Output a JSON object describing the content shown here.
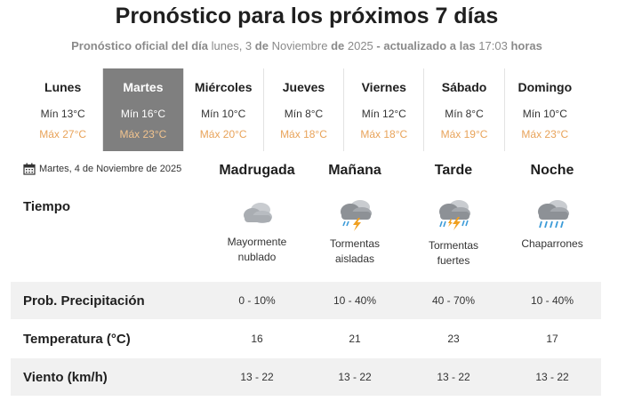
{
  "header": {
    "title": "Pronóstico para los próximos 7 días",
    "subtitle": {
      "prefix": "Pronóstico oficial del día",
      "date_day": "lunes, 3",
      "de1": "de",
      "month": "Noviembre",
      "de2": "de",
      "year": "2025",
      "updated": "- actualizado a las",
      "time": "17:03",
      "suffix": "horas"
    }
  },
  "days": [
    {
      "name": "Lunes",
      "min": "Mín 13°C",
      "max": "Máx 27°C",
      "active": false
    },
    {
      "name": "Martes",
      "min": "Mín 16°C",
      "max": "Máx 23°C",
      "active": true
    },
    {
      "name": "Miércoles",
      "min": "Mín 10°C",
      "max": "Máx 20°C",
      "active": false
    },
    {
      "name": "Jueves",
      "min": "Mín 8°C",
      "max": "Máx 18°C",
      "active": false
    },
    {
      "name": "Viernes",
      "min": "Mín 12°C",
      "max": "Máx 18°C",
      "active": false
    },
    {
      "name": "Sábado",
      "min": "Mín 8°C",
      "max": "Máx 19°C",
      "active": false
    },
    {
      "name": "Domingo",
      "min": "Mín 10°C",
      "max": "Máx 23°C",
      "active": false
    }
  ],
  "selected_date": "Martes, 4 de Noviembre de 2025",
  "periods": [
    {
      "name": "Madrugada",
      "icon": "cloudy-icon",
      "weather": [
        "Mayormente",
        "nublado"
      ],
      "precip": "0 - 10%",
      "temp": "16",
      "wind": "13 - 22"
    },
    {
      "name": "Mañana",
      "icon": "thunderstorm-icon",
      "weather": [
        "Tormentas",
        "aisladas"
      ],
      "precip": "10 - 40%",
      "temp": "21",
      "wind": "13 - 22"
    },
    {
      "name": "Tarde",
      "icon": "strong-thunderstorm-icon",
      "weather": [
        "Tormentas",
        "fuertes"
      ],
      "precip": "40 - 70%",
      "temp": "23",
      "wind": "13 - 22"
    },
    {
      "name": "Noche",
      "icon": "showers-icon",
      "weather": [
        "Chaparrones",
        ""
      ],
      "precip": "10 - 40%",
      "temp": "17",
      "wind": "13 - 22"
    }
  ],
  "labels": {
    "tiempo": "Tiempo",
    "precip": "Prob. Precipitación",
    "temp": "Temperatura (°C)",
    "wind": "Viento (km/h)"
  },
  "colors": {
    "max_temp": "#e8a35a",
    "active_day_bg": "#7f7f7f",
    "row_shade": "#f1f1f1",
    "lightning": "#f0a020",
    "rain": "#3b9bd8"
  }
}
